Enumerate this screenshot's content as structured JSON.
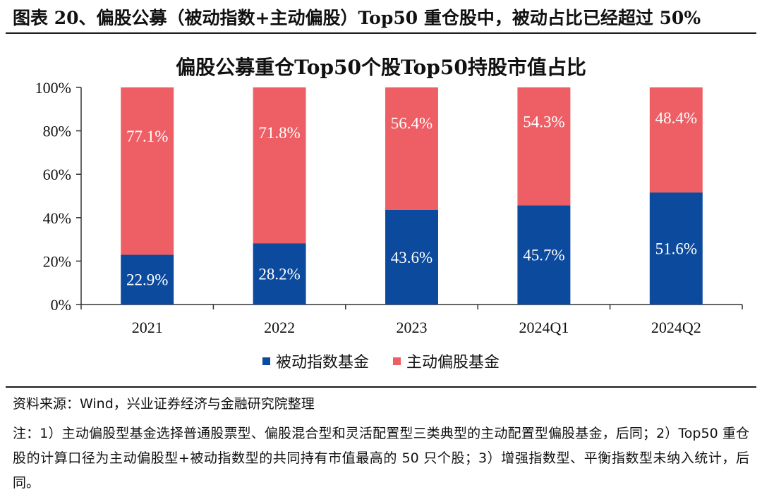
{
  "figure": {
    "title": "图表 20、偏股公募（被动指数+主动偏股）Top50 重仓股中，被动占比已经超过 50%",
    "source": "资料来源：Wind，兴业证券经济与金融研究院整理",
    "note": "注：1）主动偏股型基金选择普通股票型、偏股混合型和灵活配置型三类典型的主动配置型偏股基金，后同；2）Top50 重仓股的计算口径为主动偏股型+被动指数型的共同持有市值最高的 50 只个股；3）增强指数型、平衡指数型未纳入统计，后同。"
  },
  "chart_data": {
    "type": "bar",
    "stacked": true,
    "title": "偏股公募重仓Top50个股Top50持股市值占比",
    "categories": [
      "2021",
      "2022",
      "2023",
      "2024Q1",
      "2024Q2"
    ],
    "series": [
      {
        "name": "被动指数基金",
        "values": [
          22.9,
          28.2,
          43.6,
          45.7,
          51.6
        ],
        "labels": [
          "22.9%",
          "28.2%",
          "43.6%",
          "45.7%",
          "51.6%"
        ],
        "color": "#0b4a9c"
      },
      {
        "name": "主动偏股基金",
        "values": [
          77.1,
          71.8,
          56.4,
          54.3,
          48.4
        ],
        "labels": [
          "77.1%",
          "71.8%",
          "56.4%",
          "54.3%",
          "48.4%"
        ],
        "color": "#ee5f65"
      }
    ],
    "ylim": [
      0,
      100
    ],
    "yticks": [
      "0%",
      "20%",
      "40%",
      "60%",
      "80%",
      "100%"
    ],
    "grid": false,
    "legend_position": "bottom"
  }
}
